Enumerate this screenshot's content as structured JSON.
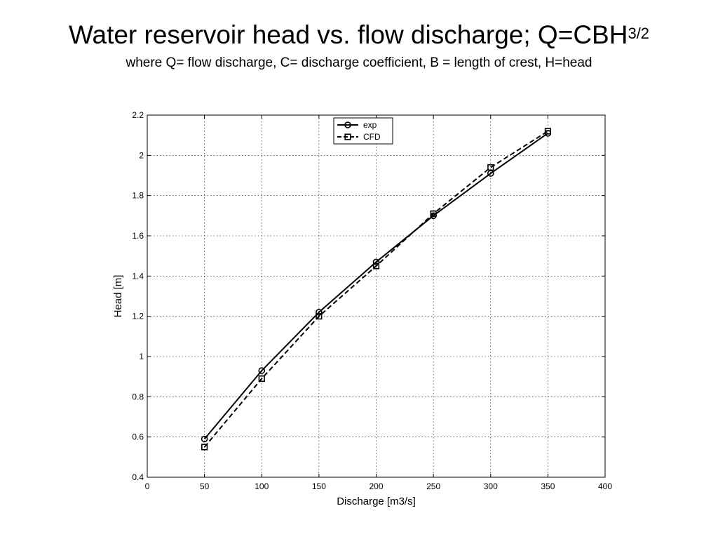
{
  "header": {
    "title": "Water reservoir head vs. flow discharge; Q=CBH",
    "title_superscript": "3/2",
    "subtitle": "where Q= flow discharge, C= discharge coefficient, B = length of crest, H=head"
  },
  "chart_data": {
    "type": "line",
    "xlabel": "Discharge [m3/s]",
    "ylabel": "Head [m]",
    "xlim": [
      0,
      400
    ],
    "ylim": [
      0.4,
      2.2
    ],
    "xticks": [
      "0",
      "50",
      "100",
      "150",
      "200",
      "250",
      "300",
      "350",
      "400"
    ],
    "yticks": [
      "0.4",
      "0.6",
      "0.8",
      "1",
      "1.2",
      "1.4",
      "1.6",
      "1.8",
      "2",
      "2.2"
    ],
    "grid": true,
    "legend_position": "top-center",
    "series": [
      {
        "name": "exp",
        "marker": "circle",
        "line": "solid",
        "x": [
          50,
          100,
          150,
          200,
          250,
          300,
          350
        ],
        "y": [
          0.59,
          0.93,
          1.22,
          1.47,
          1.7,
          1.91,
          2.11
        ]
      },
      {
        "name": "CFD",
        "marker": "square",
        "line": "dashed",
        "x": [
          50,
          100,
          150,
          200,
          250,
          300,
          350
        ],
        "y": [
          0.55,
          0.89,
          1.2,
          1.45,
          1.71,
          1.94,
          2.12
        ]
      }
    ]
  }
}
